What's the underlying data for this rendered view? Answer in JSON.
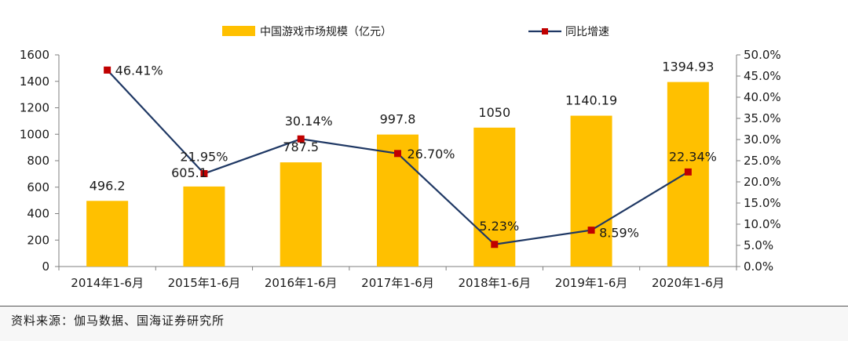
{
  "chart_data": {
    "type": "bar+line",
    "categories": [
      "2014年1-6月",
      "2015年1-6月",
      "2016年1-6月",
      "2017年1-6月",
      "2018年1-6月",
      "2019年1-6月",
      "2020年1-6月"
    ],
    "series": [
      {
        "name": "中国游戏市场规模（亿元）",
        "kind": "bar",
        "axis": "left",
        "values": [
          496.2,
          605.1,
          787.5,
          997.8,
          1050,
          1140.19,
          1394.93
        ],
        "labels": [
          "496.2",
          "605.1",
          "787.5",
          "997.8",
          "1050",
          "1140.19",
          "1394.93"
        ],
        "color": "#FFC000"
      },
      {
        "name": "同比增速",
        "kind": "line",
        "axis": "right",
        "values": [
          46.41,
          21.95,
          30.14,
          26.7,
          5.23,
          8.59,
          22.34
        ],
        "labels": [
          "46.41%",
          "21.95%",
          "30.14%",
          "26.70%",
          "5.23%",
          "8.59%",
          "22.34%"
        ],
        "line_color": "#1F3864",
        "marker_color": "#C00000"
      }
    ],
    "y_left": {
      "min": 0,
      "max": 1600,
      "ticks": [
        "0",
        "200",
        "400",
        "600",
        "800",
        "1000",
        "1200",
        "1400",
        "1600"
      ]
    },
    "y_right": {
      "min": 0,
      "max": 50,
      "ticks": [
        "0.0%",
        "5.0%",
        "10.0%",
        "15.0%",
        "20.0%",
        "25.0%",
        "30.0%",
        "35.0%",
        "40.0%",
        "45.0%",
        "50.0%"
      ]
    },
    "legend_position": "top"
  },
  "source": "资料来源：伽马数据、国海证券研究所"
}
